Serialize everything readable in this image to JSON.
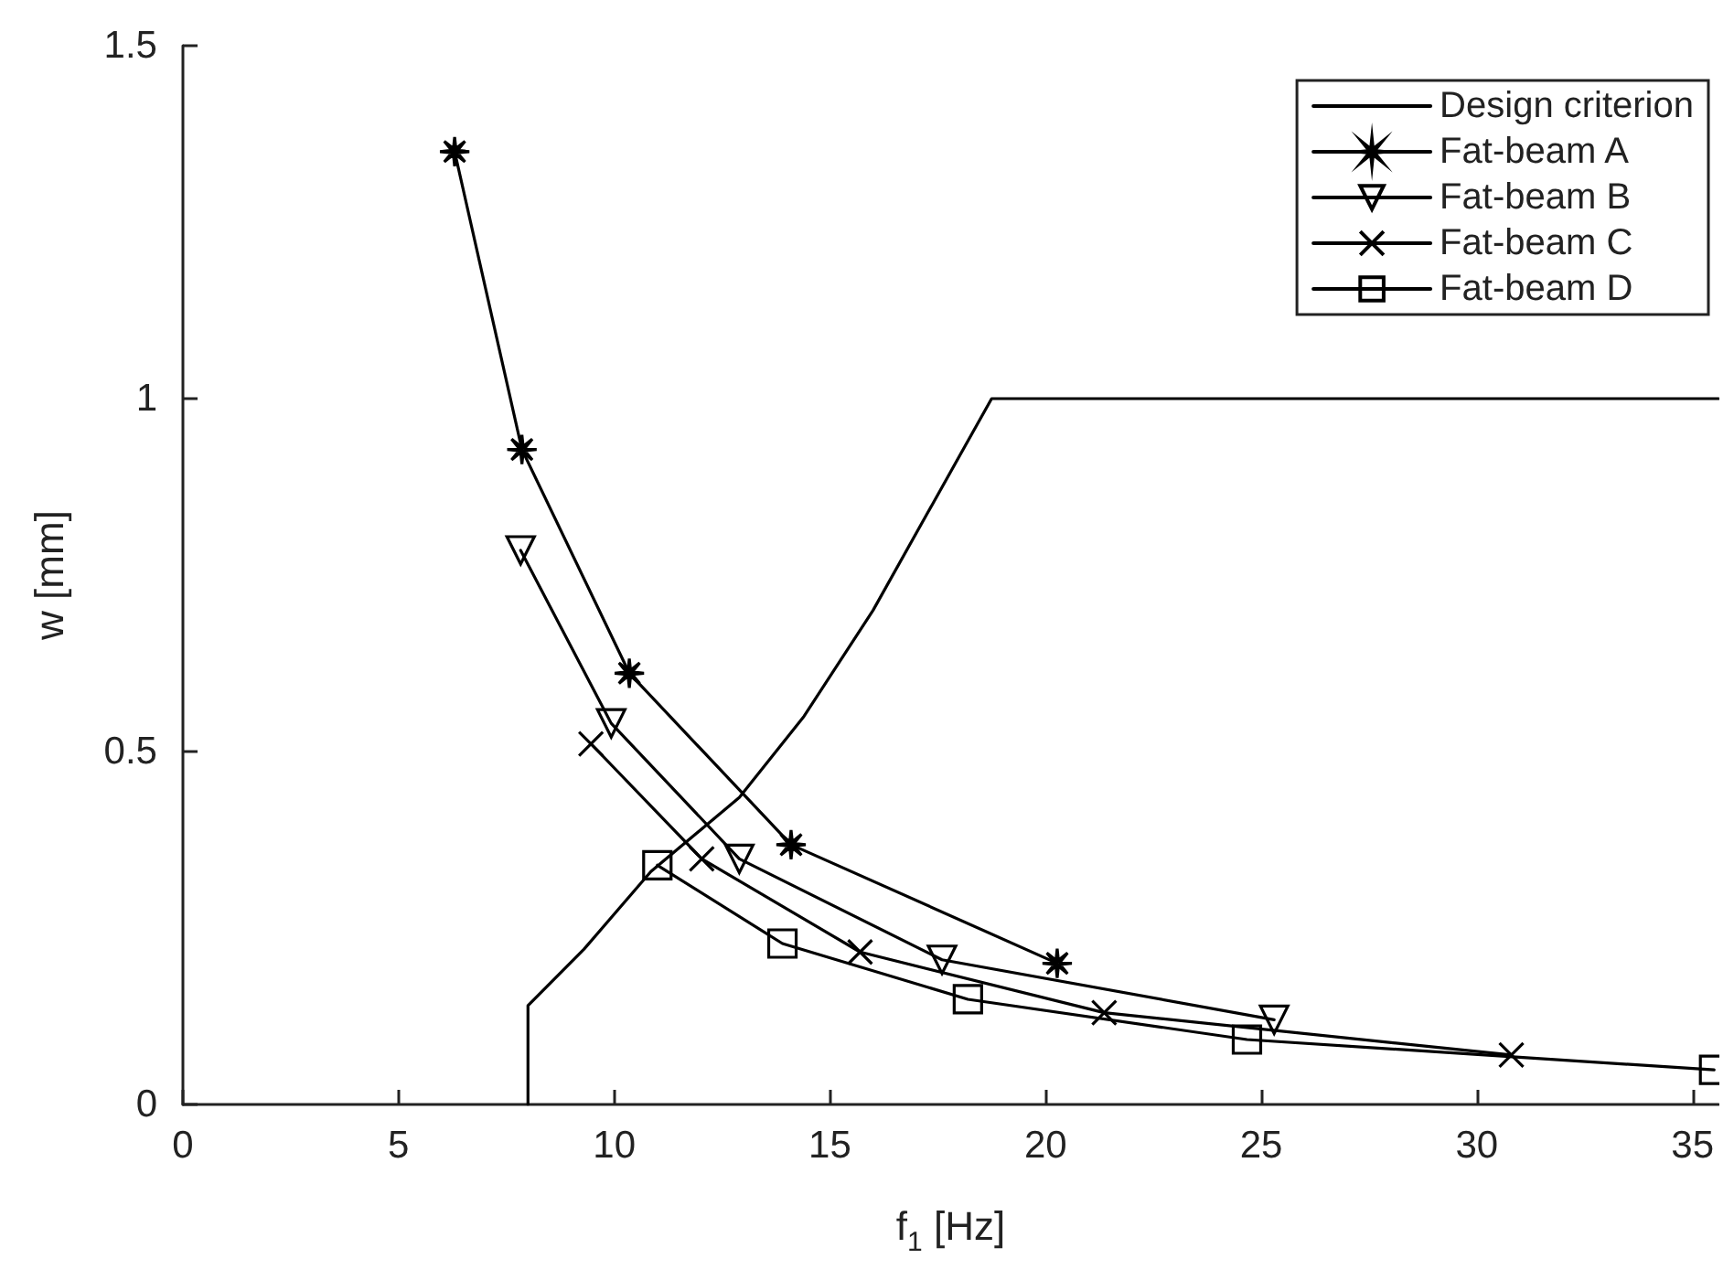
{
  "chart_data": {
    "type": "line",
    "xlabel": "f$_{1}$ [Hz]",
    "ylabel": "w [mm]",
    "xlim": [
      0,
      35.6
    ],
    "ylim": [
      0,
      1.5
    ],
    "xticks": [
      0,
      5,
      10,
      15,
      20,
      25,
      30,
      35
    ],
    "yticks": [
      0,
      0.5,
      1,
      1.5
    ],
    "grid": false,
    "legend": "top right",
    "line_style": "solid",
    "series": [
      {
        "name": "Design criterion",
        "color": "#000000",
        "marker": "none",
        "x": [
          8,
          8,
          9.3,
          10.85,
          12.9,
          14.4,
          16,
          18.75,
          35.6
        ],
        "values": [
          0,
          0.14,
          0.22,
          0.33,
          0.435,
          0.55,
          0.7,
          1,
          1
        ]
      },
      {
        "name": "Fat-beam A",
        "color": "#000000",
        "marker": "star",
        "x": [
          6.3,
          7.86,
          10.35,
          14.1,
          20.27
        ],
        "values": [
          1.35,
          0.928,
          0.611,
          0.368,
          0.2
        ]
      },
      {
        "name": "Fat-beam B",
        "color": "#000000",
        "marker": "triangle",
        "x": [
          7.83,
          9.93,
          12.9,
          17.6,
          25.3
        ],
        "values": [
          0.785,
          0.54,
          0.348,
          0.205,
          0.12
        ]
      },
      {
        "name": "Fat-beam C",
        "color": "#000000",
        "marker": "cross",
        "x": [
          9.46,
          12.03,
          15.7,
          21.36,
          30.8
        ],
        "values": [
          0.511,
          0.348,
          0.216,
          0.13,
          0.07
        ]
      },
      {
        "name": "Fat-beam D",
        "color": "#000000",
        "marker": "square",
        "x": [
          11,
          13.9,
          18.2,
          24.67,
          35.5
        ],
        "values": [
          0.339,
          0.228,
          0.149,
          0.092,
          0.049
        ]
      }
    ]
  }
}
